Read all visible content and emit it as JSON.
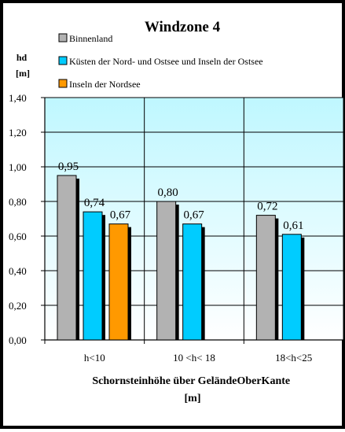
{
  "chart_data": {
    "type": "bar",
    "title": "Windzone 4",
    "ylabel": "hd\n[m]",
    "xlabel": "Schornsteinhöhe über GeländeOberKante\n[m]",
    "categories": [
      "h<10",
      "10 <h< 18",
      "18<h<25"
    ],
    "series": [
      {
        "name": "Binnenland",
        "color": "#b2b2b2",
        "values": [
          0.95,
          0.8,
          0.72
        ],
        "labels": [
          "0,95",
          "0,80",
          "0,72"
        ]
      },
      {
        "name": "Küsten der Nord- und Ostsee und Inseln der Ostsee",
        "color": "#00ccff",
        "values": [
          0.74,
          0.67,
          0.61
        ],
        "labels": [
          "0,74",
          "0,67",
          "0,61"
        ]
      },
      {
        "name": "Inseln der Nordsee",
        "color": "#ff9900",
        "values": [
          0.67,
          null,
          null
        ],
        "labels": [
          "0,67",
          "",
          ""
        ]
      }
    ],
    "ylim": [
      0,
      1.4
    ],
    "yticks": [
      {
        "value": 0.0,
        "label": "0,00"
      },
      {
        "value": 0.2,
        "label": "0,20"
      },
      {
        "value": 0.4,
        "label": "0,40"
      },
      {
        "value": 0.6,
        "label": "0,60"
      },
      {
        "value": 0.8,
        "label": "0,80"
      },
      {
        "value": 1.0,
        "label": "1,00"
      },
      {
        "value": 1.2,
        "label": "1,20"
      },
      {
        "value": 1.4,
        "label": "1,40"
      }
    ],
    "grid": true,
    "legend_position": "top",
    "plot_background": "#ccffff"
  }
}
